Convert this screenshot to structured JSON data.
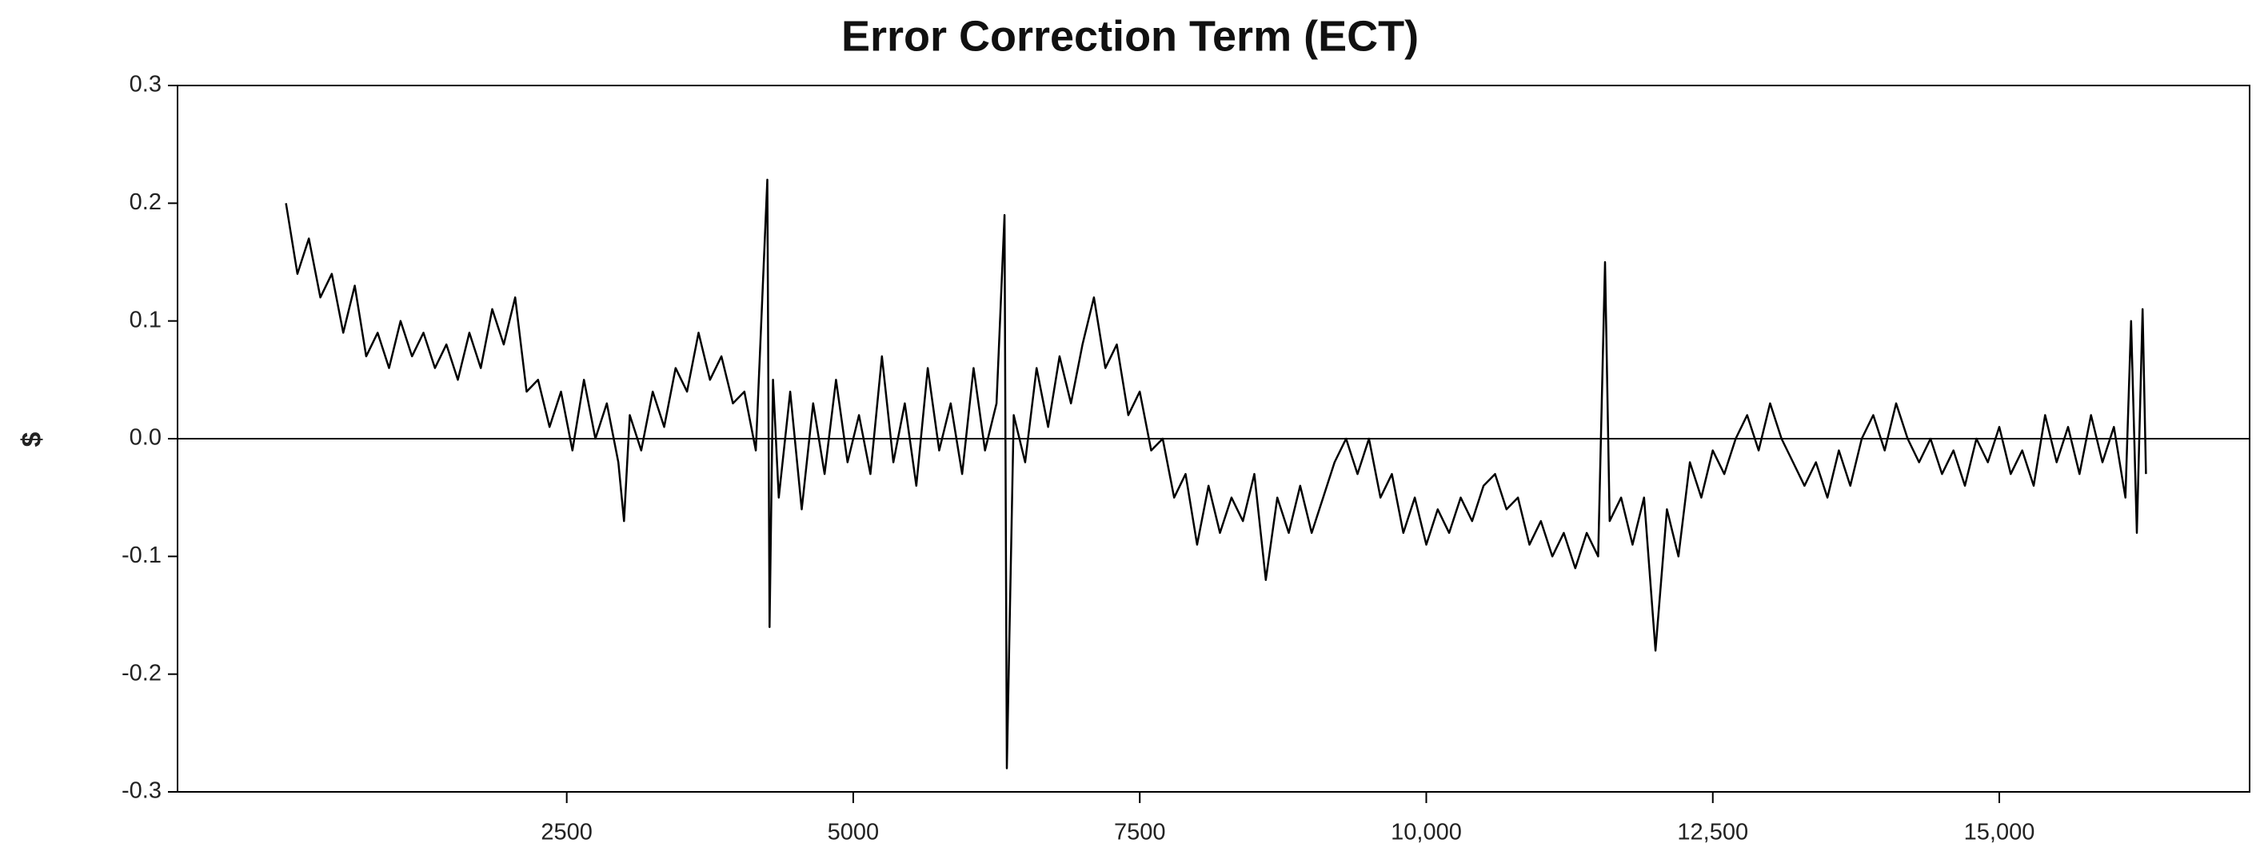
{
  "chart_data": {
    "type": "line",
    "title": "Error Correction Term (ECT)",
    "y_label": "$",
    "x": [
      50,
      150,
      250,
      350,
      450,
      550,
      650,
      750,
      850,
      950,
      1050,
      1150,
      1250,
      1350,
      1450,
      1550,
      1650,
      1750,
      1850,
      1950,
      2050,
      2150,
      2250,
      2350,
      2450,
      2550,
      2650,
      2750,
      2850,
      2950,
      3000,
      3050,
      3150,
      3250,
      3350,
      3450,
      3550,
      3650,
      3750,
      3850,
      3950,
      4050,
      4150,
      4250,
      4270,
      4300,
      4350,
      4450,
      4550,
      4650,
      4750,
      4850,
      4950,
      5050,
      5150,
      5250,
      5350,
      5450,
      5550,
      5650,
      5750,
      5850,
      5950,
      6050,
      6150,
      6250,
      6320,
      6340,
      6400,
      6500,
      6600,
      6700,
      6800,
      6900,
      7000,
      7100,
      7200,
      7300,
      7400,
      7500,
      7600,
      7700,
      7800,
      7900,
      8000,
      8100,
      8200,
      8300,
      8400,
      8500,
      8600,
      8700,
      8800,
      8900,
      9000,
      9100,
      9200,
      9300,
      9400,
      9500,
      9600,
      9700,
      9800,
      9900,
      10000,
      10100,
      10200,
      10300,
      10400,
      10500,
      10600,
      10700,
      10800,
      10900,
      11000,
      11100,
      11200,
      11300,
      11400,
      11500,
      11560,
      11600,
      11700,
      11800,
      11900,
      12000,
      12100,
      12200,
      12300,
      12400,
      12500,
      12600,
      12700,
      12800,
      12900,
      13000,
      13100,
      13200,
      13300,
      13400,
      13500,
      13600,
      13700,
      13800,
      13900,
      14000,
      14100,
      14200,
      14300,
      14400,
      14500,
      14600,
      14700,
      14800,
      14900,
      15000,
      15100,
      15200,
      15300,
      15400,
      15500,
      15600,
      15700,
      15800,
      15900,
      16000,
      16100,
      16150,
      16200,
      16250,
      16280
    ],
    "series": [
      {
        "name": "ECT",
        "color": "#000000",
        "values": [
          0.2,
          0.14,
          0.17,
          0.12,
          0.14,
          0.09,
          0.13,
          0.07,
          0.09,
          0.06,
          0.1,
          0.07,
          0.09,
          0.06,
          0.08,
          0.05,
          0.09,
          0.06,
          0.11,
          0.08,
          0.12,
          0.04,
          0.05,
          0.01,
          0.04,
          -0.01,
          0.05,
          0.0,
          0.03,
          -0.02,
          -0.07,
          0.02,
          -0.01,
          0.04,
          0.01,
          0.06,
          0.04,
          0.09,
          0.05,
          0.07,
          0.03,
          0.04,
          -0.01,
          0.22,
          -0.16,
          0.05,
          -0.05,
          0.04,
          -0.06,
          0.03,
          -0.03,
          0.05,
          -0.02,
          0.02,
          -0.03,
          0.07,
          -0.02,
          0.03,
          -0.04,
          0.06,
          -0.01,
          0.03,
          -0.03,
          0.06,
          -0.01,
          0.03,
          0.19,
          -0.28,
          0.02,
          -0.02,
          0.06,
          0.01,
          0.07,
          0.03,
          0.08,
          0.12,
          0.06,
          0.08,
          0.02,
          0.04,
          -0.01,
          0.0,
          -0.05,
          -0.03,
          -0.09,
          -0.04,
          -0.08,
          -0.05,
          -0.07,
          -0.03,
          -0.12,
          -0.05,
          -0.08,
          -0.04,
          -0.08,
          -0.05,
          -0.02,
          0.0,
          -0.03,
          0.0,
          -0.05,
          -0.03,
          -0.08,
          -0.05,
          -0.09,
          -0.06,
          -0.08,
          -0.05,
          -0.07,
          -0.04,
          -0.03,
          -0.06,
          -0.05,
          -0.09,
          -0.07,
          -0.1,
          -0.08,
          -0.11,
          -0.08,
          -0.1,
          0.15,
          -0.07,
          -0.05,
          -0.09,
          -0.05,
          -0.18,
          -0.06,
          -0.1,
          -0.02,
          -0.05,
          -0.01,
          -0.03,
          0.0,
          0.02,
          -0.01,
          0.03,
          0.0,
          -0.02,
          -0.04,
          -0.02,
          -0.05,
          -0.01,
          -0.04,
          0.0,
          0.02,
          -0.01,
          0.03,
          0.0,
          -0.02,
          0.0,
          -0.03,
          -0.01,
          -0.04,
          0.0,
          -0.02,
          0.01,
          -0.03,
          -0.01,
          -0.04,
          0.02,
          -0.02,
          0.01,
          -0.03,
          0.02,
          -0.02,
          0.01,
          -0.05,
          0.1,
          -0.08,
          0.11,
          -0.03
        ]
      }
    ],
    "xlim": [
      -896,
      17184
    ],
    "xticks": [
      2500,
      5000,
      7500,
      {
        "value": 10000,
        "label": "10,000"
      },
      {
        "value": 12500,
        "label": "12,500"
      },
      {
        "value": 15000,
        "label": "15,000"
      }
    ],
    "ylim": [
      -0.3,
      0.3
    ],
    "yticks": [
      -0.3,
      -0.2,
      -0.1,
      {
        "value": 0,
        "label": "0.0"
      },
      0.1,
      0.2,
      0.3
    ],
    "zero_line": true
  }
}
